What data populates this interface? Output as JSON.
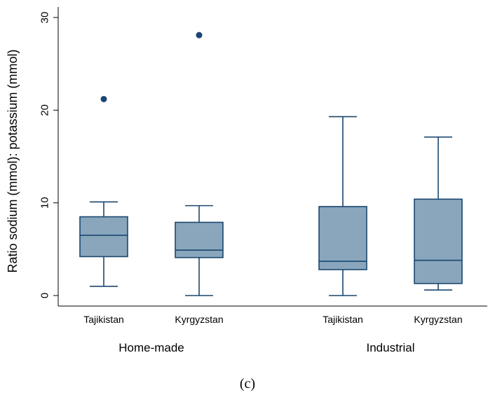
{
  "chart_data": {
    "type": "box",
    "ylabel": "Ratio sodium (mmol): potassium (mmol)",
    "ylim": [
      0,
      30
    ],
    "yticks": [
      0,
      10,
      20,
      30
    ],
    "grid": false,
    "groups": [
      "Home-made",
      "Industrial"
    ],
    "categories": [
      "Tajikistan",
      "Kyrgyzstan",
      "Tajikistan",
      "Kyrgyzstan"
    ],
    "boxes": [
      {
        "group": "Home-made",
        "category": "Tajikistan",
        "min": 1.0,
        "q1": 4.2,
        "median": 6.5,
        "q3": 8.5,
        "max": 10.1,
        "outliers": [
          21.2
        ]
      },
      {
        "group": "Home-made",
        "category": "Kyrgyzstan",
        "min": 0.0,
        "q1": 4.1,
        "median": 4.9,
        "q3": 7.9,
        "max": 9.7,
        "outliers": [
          28.1
        ]
      },
      {
        "group": "Industrial",
        "category": "Tajikistan",
        "min": 0.0,
        "q1": 2.8,
        "median": 3.7,
        "q3": 9.6,
        "max": 19.3,
        "outliers": []
      },
      {
        "group": "Industrial",
        "category": "Kyrgyzstan",
        "min": 0.6,
        "q1": 1.3,
        "median": 3.8,
        "q3": 10.4,
        "max": 17.1,
        "outliers": []
      }
    ],
    "colors": {
      "box_fill": "#89A6BC",
      "box_stroke": "#1A476F",
      "outlier": "#1A476F"
    }
  },
  "caption": "(c)"
}
